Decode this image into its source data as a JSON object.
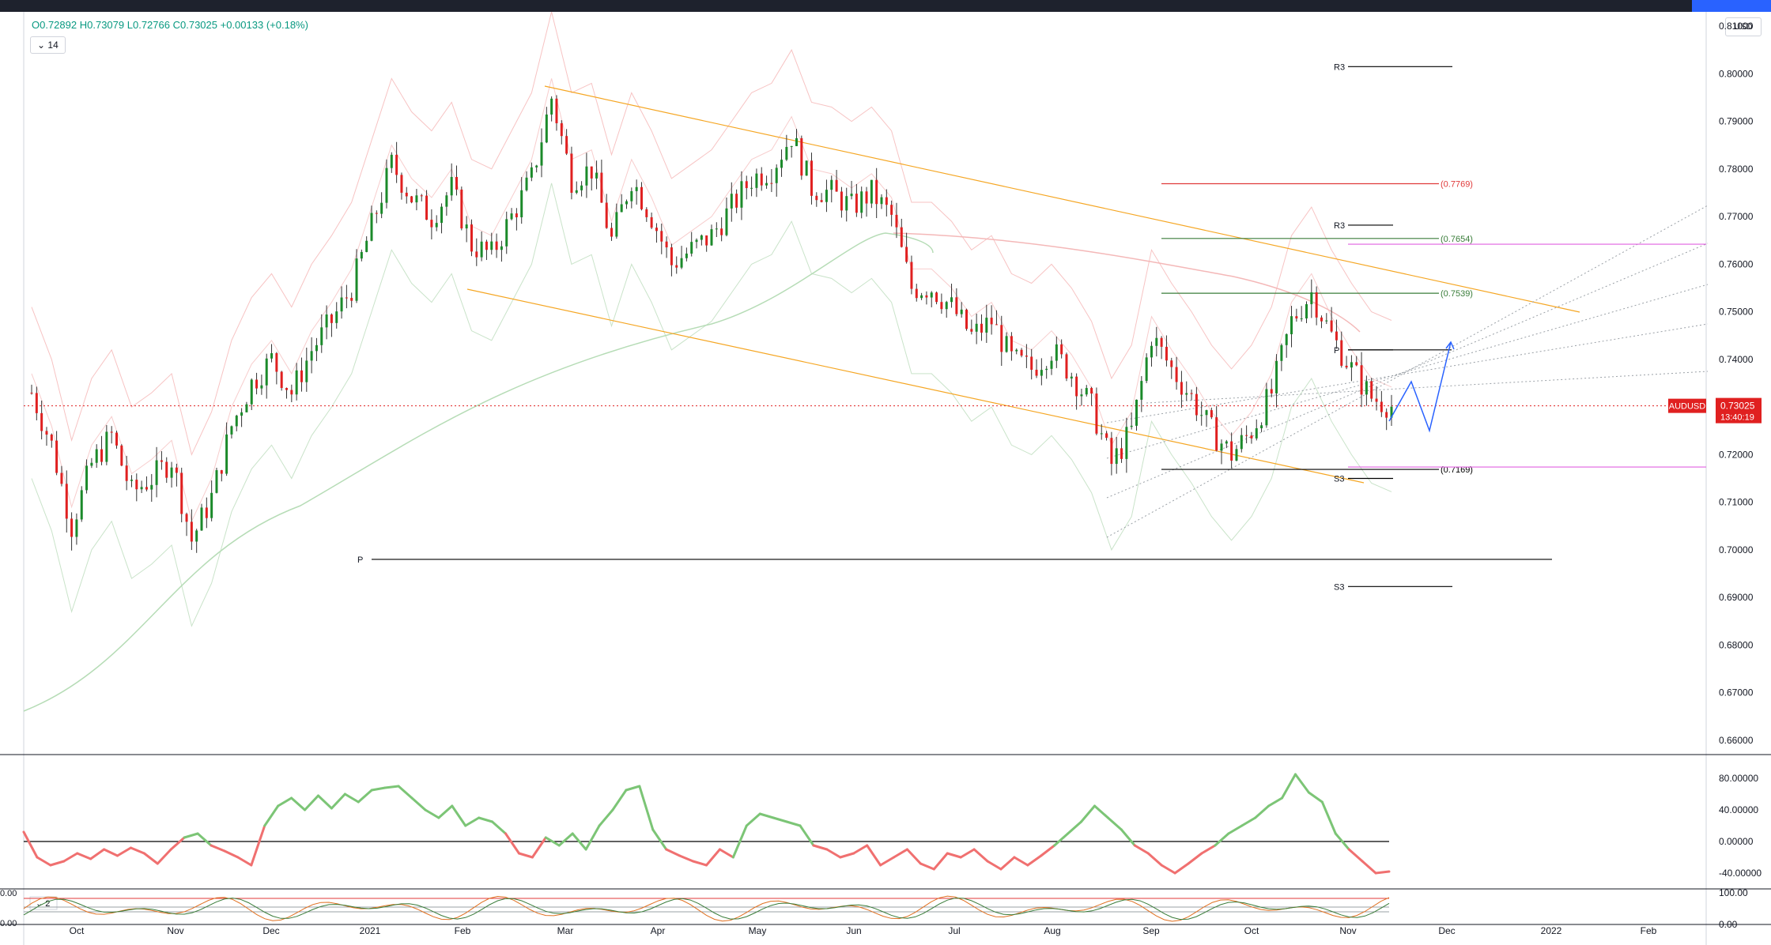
{
  "currency_selector": "USD",
  "ohlc": {
    "open": "O0.72892",
    "high": "H0.73079",
    "low": "L0.72766",
    "close": "C0.73025",
    "change": "+0.00133 (+0.18%)"
  },
  "indicator_legend": "14",
  "symbol": "AUDUSD",
  "last_price": "0.73025",
  "countdown": "13:40:19",
  "colors": {
    "up": "#1b8a2a",
    "down": "#e02020",
    "channel": "#f5a623",
    "pivot_line": "#000000",
    "fib_green": "#3a7d3a",
    "fib_red": "#e03a3a",
    "magenta": "#e060e0",
    "projection": "#2962ff",
    "oscillator_up": "#7cc576",
    "oscillator_down": "#f07070"
  },
  "chart_data": [
    {
      "type": "candlestick",
      "symbol": "AUDUSD",
      "y_axis_ticks": [
        "0.81000",
        "0.80000",
        "0.79000",
        "0.78000",
        "0.77000",
        "0.76000",
        "0.75000",
        "0.74000",
        "0.73000",
        "0.72000",
        "0.71000",
        "0.70000",
        "0.69000",
        "0.68000",
        "0.67000",
        "0.66000"
      ],
      "ylim": [
        0.657,
        0.813
      ],
      "x_axis_labels": [
        "Oct",
        "Nov",
        "Dec",
        "2021",
        "Feb",
        "Mar",
        "Apr",
        "May",
        "Jun",
        "Jul",
        "Aug",
        "Sep",
        "Oct",
        "Nov",
        "Dec",
        "2022",
        "Feb"
      ],
      "approx_close_path": [
        [
          0.733,
          0.722,
          0.705,
          0.718,
          0.724,
          0.712,
          0.715,
          0.719,
          0.702,
          0.711,
          0.726,
          0.735,
          0.74,
          0.733,
          0.742,
          0.748,
          0.755,
          0.768,
          0.781,
          0.774,
          0.77,
          0.776,
          0.764,
          0.762,
          0.77,
          0.778,
          0.795,
          0.778,
          0.78,
          0.765,
          0.778,
          0.77,
          0.76,
          0.763,
          0.766,
          0.772,
          0.778,
          0.78,
          0.787,
          0.776,
          0.775,
          0.772,
          0.775,
          0.77,
          0.755,
          0.755,
          0.751,
          0.745,
          0.748,
          0.74,
          0.738,
          0.742,
          0.737,
          0.73,
          0.718,
          0.725,
          0.745,
          0.738,
          0.732,
          0.725,
          0.72,
          0.725,
          0.733,
          0.748,
          0.754,
          0.745,
          0.738,
          0.732,
          0.7302
        ]
      ],
      "price_levels": [
        {
          "label": "R3",
          "value": 0.8015
        },
        {
          "label": "R3",
          "value": 0.7682
        },
        {
          "label": "P",
          "value": 0.742
        },
        {
          "label": "S3",
          "value": 0.715
        },
        {
          "label": "P",
          "value": 0.698
        },
        {
          "label": "S3",
          "value": 0.6923
        }
      ],
      "fib_levels": [
        {
          "label": "(0.7769)",
          "value": 0.7769
        },
        {
          "label": "(0.7654)",
          "value": 0.7654
        },
        {
          "label": "(0.7539)",
          "value": 0.7539
        },
        {
          "label": "(0.7169)",
          "value": 0.7169
        }
      ],
      "magenta_levels": [
        0.7642,
        0.7174
      ],
      "current_price_line": 0.73025
    },
    {
      "type": "line",
      "name": "oscillator",
      "y_axis_ticks": [
        "80.00000",
        "40.00000",
        "0.00000",
        "-40.00000"
      ],
      "ylim": [
        -60,
        100
      ],
      "zero_line": 0,
      "values": [
        12,
        -20,
        -30,
        -25,
        -15,
        -22,
        -10,
        -18,
        -8,
        -15,
        -28,
        -10,
        5,
        10,
        -5,
        -12,
        -20,
        -30,
        20,
        45,
        55,
        40,
        58,
        42,
        60,
        50,
        65,
        68,
        70,
        55,
        40,
        30,
        45,
        20,
        30,
        25,
        10,
        -15,
        -20,
        5,
        -5,
        10,
        -10,
        20,
        40,
        65,
        70,
        15,
        -10,
        -18,
        -25,
        -30,
        -10,
        -20,
        20,
        35,
        30,
        25,
        20,
        -5,
        -10,
        -20,
        -15,
        -5,
        -30,
        -20,
        -10,
        -28,
        -35,
        -15,
        -20,
        -10,
        -25,
        -35,
        -20,
        -30,
        -18,
        -5,
        10,
        25,
        45,
        30,
        15,
        -5,
        -15,
        -30,
        -40,
        -28,
        -15,
        -5,
        10,
        20,
        30,
        45,
        55,
        85,
        62,
        50,
        10,
        -10,
        -25,
        -40,
        -38
      ]
    },
    {
      "type": "line",
      "name": "stochastic",
      "legend_value": "2",
      "y_axis_ticks": [
        "100.00",
        "0.00"
      ],
      "ylim": [
        0,
        100
      ]
    }
  ]
}
